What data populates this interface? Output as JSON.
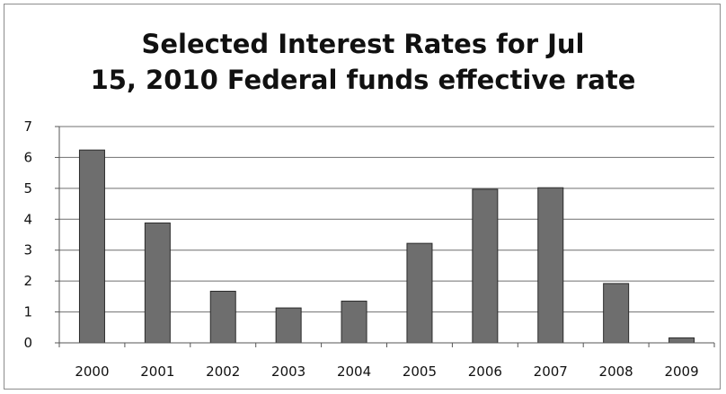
{
  "chart_data": {
    "type": "bar",
    "title_lines": [
      "Selected Interest Rates for Jul",
      "15, 2010 Federal funds effective rate"
    ],
    "categories": [
      "2000",
      "2001",
      "2002",
      "2003",
      "2004",
      "2005",
      "2006",
      "2007",
      "2008",
      "2009"
    ],
    "values": [
      6.24,
      3.88,
      1.67,
      1.13,
      1.35,
      3.22,
      4.97,
      5.02,
      1.92,
      0.16
    ],
    "ylim": [
      0,
      7
    ],
    "yticks": [
      0,
      1,
      2,
      3,
      4,
      5,
      6,
      7
    ],
    "grid": true,
    "legend": "none",
    "bar_color": "#6e6e6e",
    "bar_edge_color": "#2b2b2b",
    "gridline_color": "#6f6f6f"
  }
}
